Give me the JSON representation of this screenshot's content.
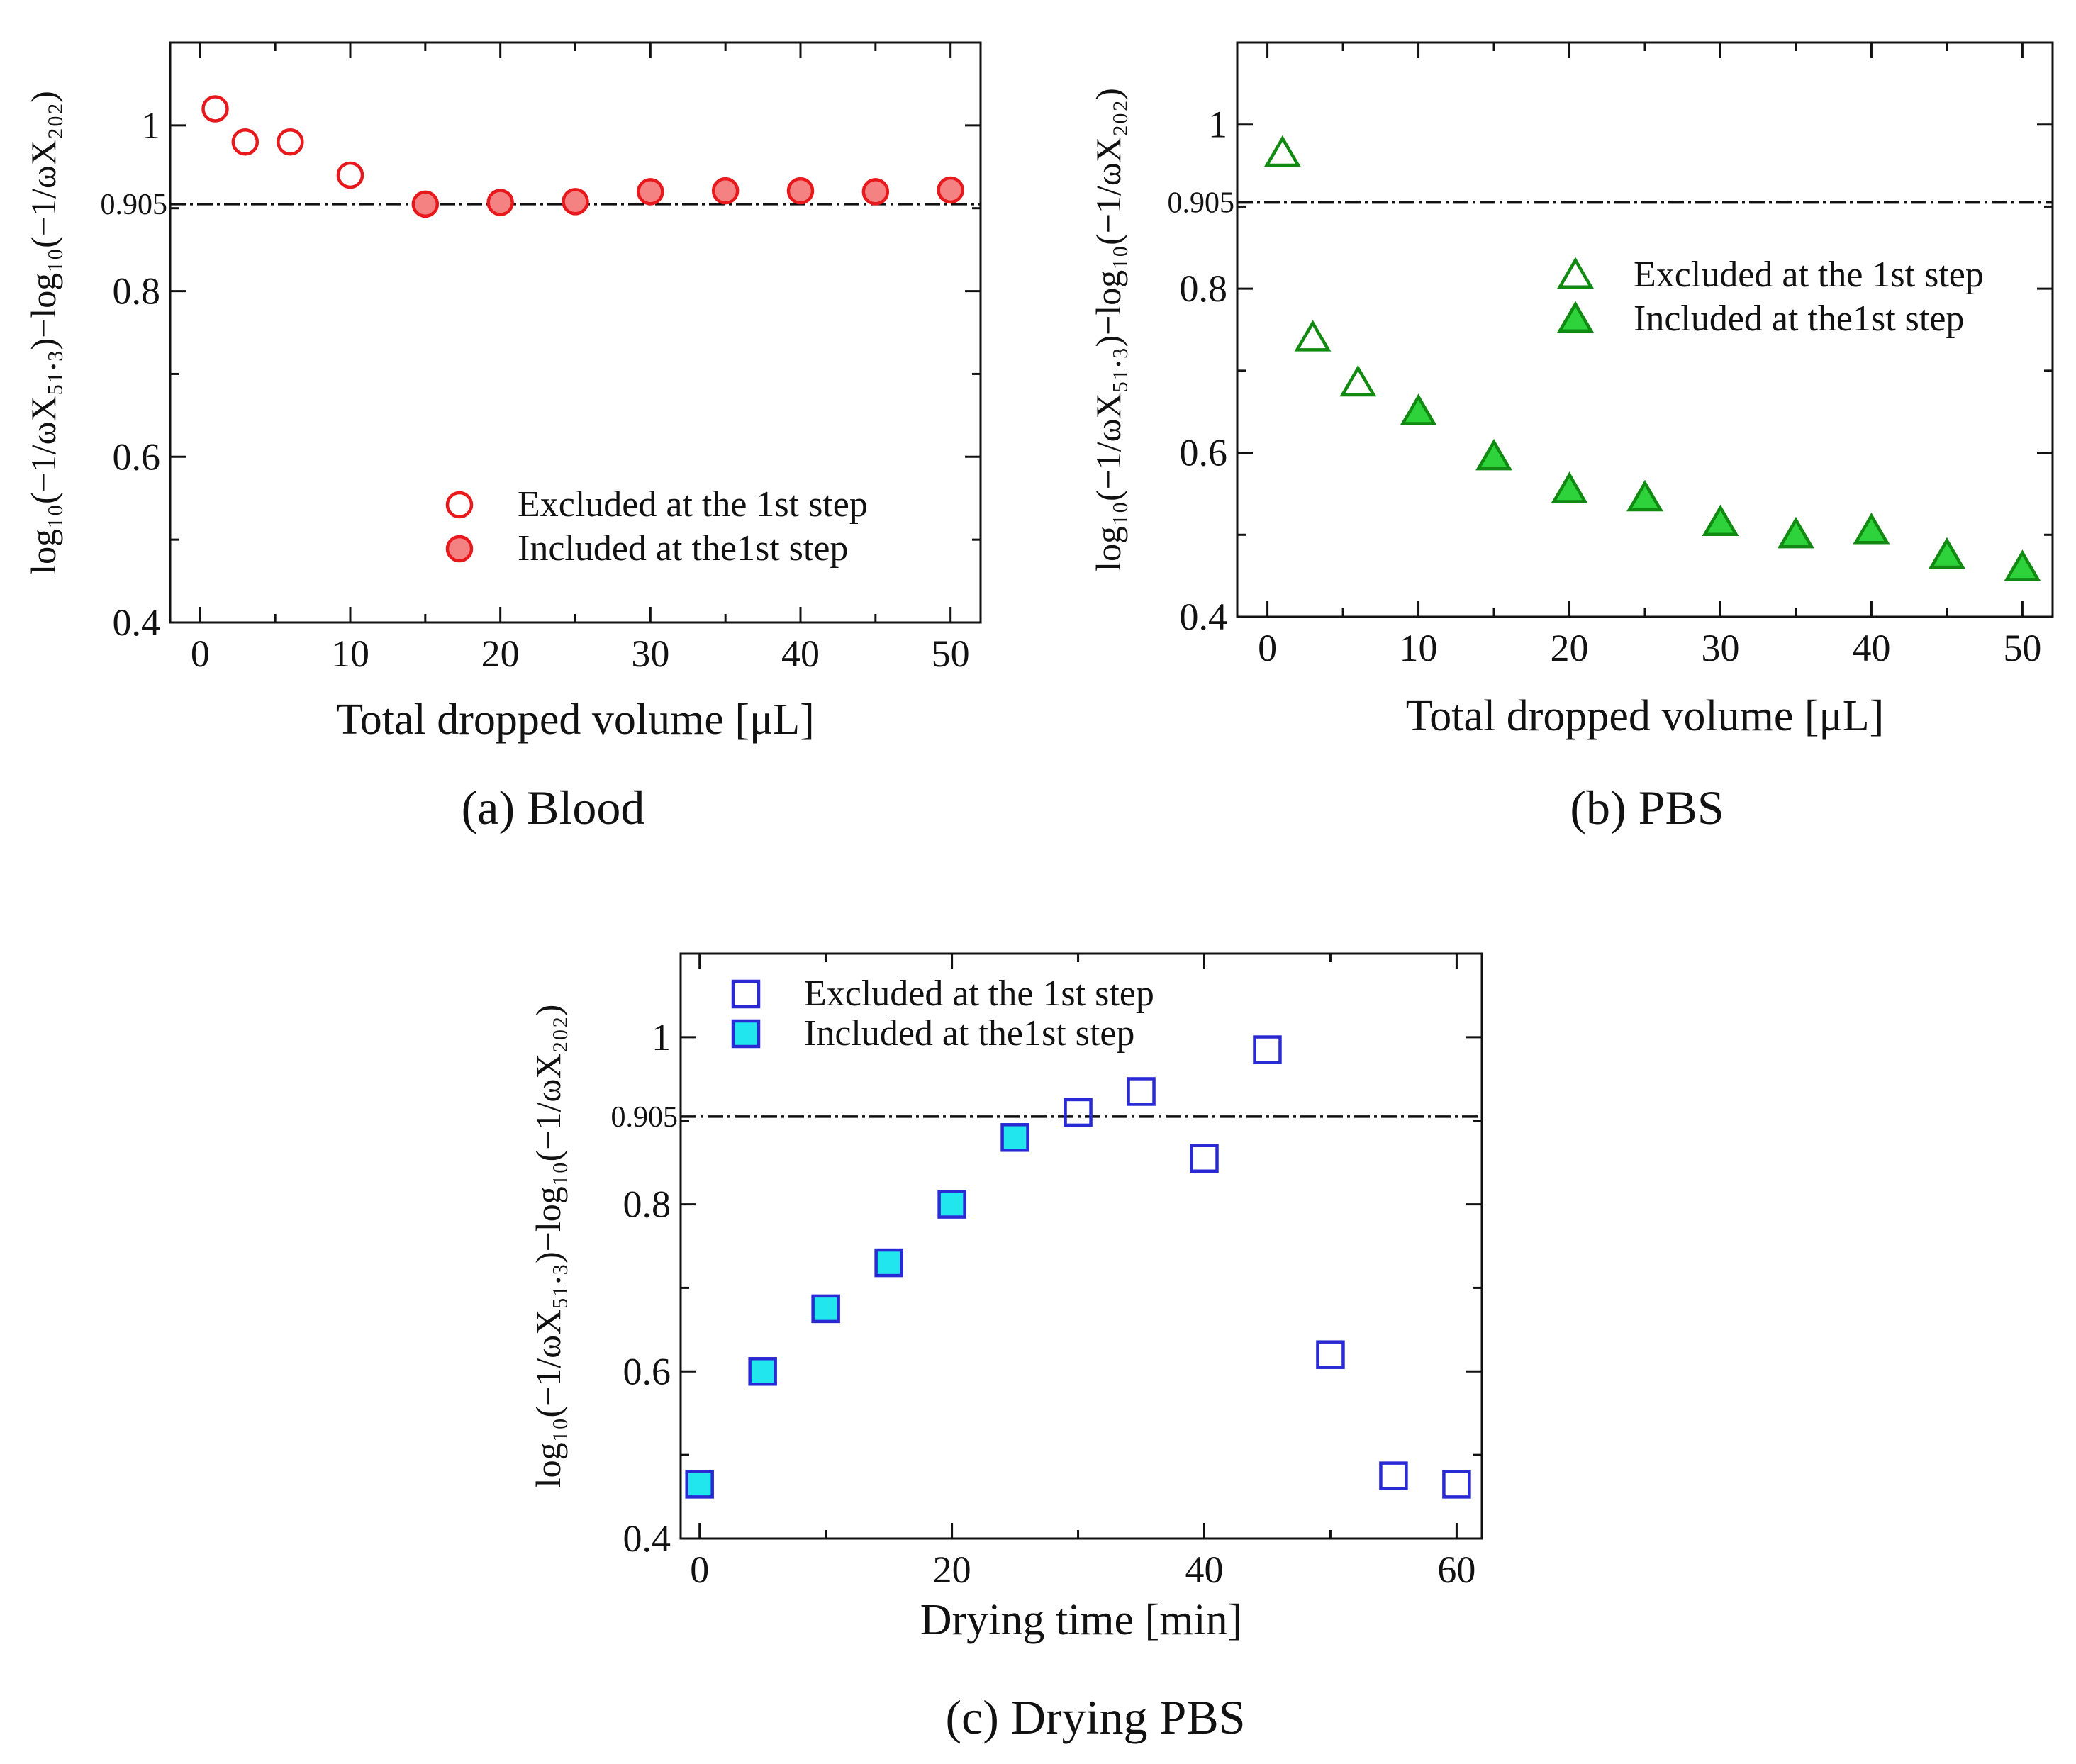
{
  "chart_data": [
    {
      "id": "a",
      "type": "scatter",
      "caption": "(a) Blood",
      "xlabel": "Total dropped volume [μL]",
      "ylabel": "log₁₀(−1/ωX₅₁.₃)−log₁₀(−1/ωX₂₀₂)",
      "xlim": [
        -2,
        52
      ],
      "ylim": [
        0.4,
        1.1
      ],
      "xticks": [
        0,
        10,
        20,
        30,
        40,
        50
      ],
      "xtick_labels": [
        "0",
        "10",
        "20",
        "30",
        "40",
        "50"
      ],
      "yticks": [
        0.4,
        0.6,
        0.8,
        1.0
      ],
      "ytick_labels": [
        "0.4",
        "0.6",
        "0.8",
        "1"
      ],
      "reference_line": {
        "y": 0.905,
        "label": "0.905"
      },
      "marker": "circle",
      "colors": {
        "stroke": "#e8191d",
        "fill": "#f48282"
      },
      "legend_position": "bottom-right",
      "series": [
        {
          "name": "Excluded at the 1st step",
          "filled": false,
          "x": [
            1,
            3,
            6,
            10
          ],
          "y": [
            1.02,
            0.98,
            0.98,
            0.94
          ]
        },
        {
          "name": "Included at the1st step",
          "filled": true,
          "x": [
            15,
            20,
            25,
            30,
            35,
            40,
            45,
            50
          ],
          "y": [
            0.905,
            0.907,
            0.908,
            0.92,
            0.921,
            0.921,
            0.92,
            0.922
          ]
        }
      ]
    },
    {
      "id": "b",
      "type": "scatter",
      "caption": "(b) PBS",
      "xlabel": "Total dropped volume [μL]",
      "ylabel": "log₁₀(−1/ωX₅₁.₃)−log₁₀(−1/ωX₂₀₂)",
      "xlim": [
        -2,
        52
      ],
      "ylim": [
        0.4,
        1.1
      ],
      "xticks": [
        0,
        10,
        20,
        30,
        40,
        50
      ],
      "xtick_labels": [
        "0",
        "10",
        "20",
        "30",
        "40",
        "50"
      ],
      "yticks": [
        0.4,
        0.6,
        0.8,
        1.0
      ],
      "ytick_labels": [
        "0.4",
        "0.6",
        "0.8",
        "1"
      ],
      "reference_line": {
        "y": 0.905,
        "label": "0.905"
      },
      "marker": "triangle",
      "colors": {
        "stroke": "#118a11",
        "fill": "#2ed33c"
      },
      "legend_position": "upper-right",
      "series": [
        {
          "name": "Excluded at the 1st step",
          "filled": false,
          "x": [
            1,
            3,
            6
          ],
          "y": [
            0.965,
            0.74,
            0.685
          ]
        },
        {
          "name": "Included at the1st step",
          "filled": true,
          "x": [
            10,
            15,
            20,
            25,
            30,
            35,
            40,
            45,
            50
          ],
          "y": [
            0.65,
            0.595,
            0.555,
            0.545,
            0.515,
            0.5,
            0.505,
            0.475,
            0.46
          ]
        }
      ]
    },
    {
      "id": "c",
      "type": "scatter",
      "caption": "(c) Drying  PBS",
      "xlabel": "Drying time [min]",
      "ylabel": "log₁₀(−1/ωX₅₁.₃)−log₁₀(−1/ωX₂₀₂)",
      "xlim": [
        -1.5,
        62
      ],
      "ylim": [
        0.4,
        1.1
      ],
      "xticks": [
        0,
        20,
        40,
        60
      ],
      "xtick_labels": [
        "0",
        "20",
        "40",
        "60"
      ],
      "yticks": [
        0.4,
        0.6,
        0.8,
        1.0
      ],
      "ytick_labels": [
        "0.4",
        "0.6",
        "0.8",
        "1"
      ],
      "reference_line": {
        "y": 0.905,
        "label": "0.905"
      },
      "marker": "square",
      "colors": {
        "stroke": "#2a2ad4",
        "fill": "#22e6ee"
      },
      "legend_position": "top-left",
      "series": [
        {
          "name": "Excluded at the 1st step",
          "filled": false,
          "x": [
            30,
            35,
            40,
            45,
            50,
            55,
            60
          ],
          "y": [
            0.91,
            0.935,
            0.855,
            0.985,
            0.62,
            0.475,
            0.465
          ]
        },
        {
          "name": "Included at the1st step",
          "filled": true,
          "x": [
            0,
            5,
            10,
            15,
            20,
            25
          ],
          "y": [
            0.465,
            0.6,
            0.675,
            0.73,
            0.8,
            0.88
          ]
        }
      ]
    }
  ]
}
